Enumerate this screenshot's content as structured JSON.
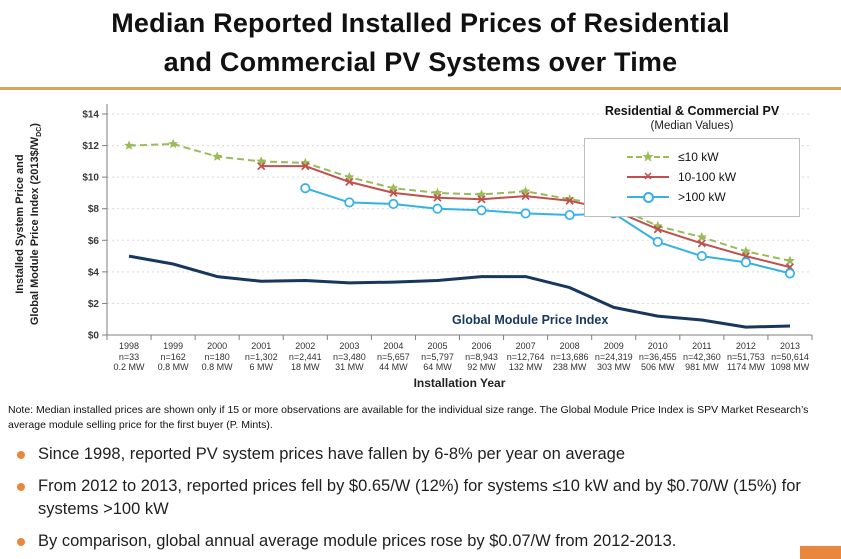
{
  "header": {
    "title_line1": "Median Reported Installed Prices of Residential",
    "title_line2": "and Commercial PV Systems over Time"
  },
  "chart_data": {
    "type": "line",
    "title": "",
    "xlabel": "Installation Year",
    "ylabel_line1": "Installed System Price and",
    "ylabel_line2": "Global Module Price Index (2013$/W",
    "ylabel_sub": "DC",
    "ylabel_close": ")",
    "ylim": [
      0,
      14
    ],
    "ytick_labels": [
      "$0",
      "$2",
      "$4",
      "$6",
      "$8",
      "$10",
      "$12",
      "$14"
    ],
    "grid": "horizontal-dotted",
    "legend": {
      "title": "Residential & Commercial PV",
      "subtitle": "(Median Values)",
      "position": "top-right"
    },
    "categories": [
      "1998",
      "1999",
      "2000",
      "2001",
      "2002",
      "2003",
      "2004",
      "2005",
      "2006",
      "2007",
      "2008",
      "2009",
      "2010",
      "2011",
      "2012",
      "2013"
    ],
    "columns": [
      {
        "year": "1998",
        "n": "n=33",
        "mw": "0.2 MW"
      },
      {
        "year": "1999",
        "n": "n=162",
        "mw": "0.8 MW"
      },
      {
        "year": "2000",
        "n": "n=180",
        "mw": "0.8 MW"
      },
      {
        "year": "2001",
        "n": "n=1,302",
        "mw": "6 MW"
      },
      {
        "year": "2002",
        "n": "n=2,441",
        "mw": "18 MW"
      },
      {
        "year": "2003",
        "n": "n=3,480",
        "mw": "31 MW"
      },
      {
        "year": "2004",
        "n": "n=5,657",
        "mw": "44 MW"
      },
      {
        "year": "2005",
        "n": "n=5,797",
        "mw": "64 MW"
      },
      {
        "year": "2006",
        "n": "n=8,943",
        "mw": "92 MW"
      },
      {
        "year": "2007",
        "n": "n=12,764",
        "mw": "132 MW"
      },
      {
        "year": "2008",
        "n": "n=13,686",
        "mw": "238 MW"
      },
      {
        "year": "2009",
        "n": "n=24,319",
        "mw": "303 MW"
      },
      {
        "year": "2010",
        "n": "n=36,455",
        "mw": "506 MW"
      },
      {
        "year": "2011",
        "n": "n=42,360",
        "mw": "981 MW"
      },
      {
        "year": "2012",
        "n": "n=51,753",
        "mw": "1174 MW"
      },
      {
        "year": "2013",
        "n": "n=50,614",
        "mw": "1098 MW"
      }
    ],
    "series": [
      {
        "id": "le10kw",
        "name": "≤10 kW",
        "color": "#9BBB59",
        "style": "dashed",
        "marker": "star",
        "width": 2,
        "values": [
          12.0,
          12.1,
          11.3,
          11.0,
          10.9,
          10.0,
          9.3,
          9.0,
          8.9,
          9.1,
          8.6,
          8.2,
          6.9,
          6.2,
          5.3,
          4.7
        ]
      },
      {
        "id": "kw10-100",
        "name": "10-100 kW",
        "color": "#C0504D",
        "style": "solid",
        "marker": "x",
        "width": 2,
        "values": [
          null,
          null,
          null,
          10.7,
          10.7,
          9.7,
          9.0,
          8.7,
          8.6,
          8.8,
          8.5,
          7.9,
          6.7,
          5.8,
          5.0,
          4.3
        ]
      },
      {
        "id": "gt100kw",
        "name": ">100 kW",
        "color": "#35B2E5",
        "style": "solid",
        "marker": "circle",
        "width": 2,
        "values": [
          null,
          null,
          null,
          null,
          9.3,
          8.4,
          8.3,
          8.0,
          7.9,
          7.7,
          7.6,
          7.7,
          5.9,
          5.0,
          4.6,
          3.9
        ]
      },
      {
        "id": "module-index",
        "name": "Global Module Price Index",
        "color": "#17375E",
        "style": "solid",
        "marker": "none",
        "width": 3,
        "values": [
          5.0,
          4.5,
          3.7,
          3.4,
          3.45,
          3.3,
          3.35,
          3.45,
          3.7,
          3.7,
          3.0,
          1.75,
          1.2,
          0.95,
          0.5,
          0.57
        ]
      }
    ]
  },
  "note": "Note: Median installed prices are shown only if 15 or more observations are available for the individual size range. The Global Module Price Index is SPV Market Research’s average module selling price for the first buyer (P. Mints).",
  "bullets": [
    "Since 1998, reported PV system prices have fallen by 6-8% per year on average",
    "From 2012 to 2013, reported prices fell by $0.65/W (12%) for systems ≤10 kW and by $0.70/W (15%) for systems >100 kW",
    "By comparison, global annual average module prices rose by $0.07/W from 2012-2013."
  ],
  "colors": {
    "title_rule": "#D9A55A",
    "bullet": "#E9873C",
    "corner_accent": "#E9873C",
    "gridline": "#D9D9D9",
    "axis": "#7F7F7F"
  }
}
